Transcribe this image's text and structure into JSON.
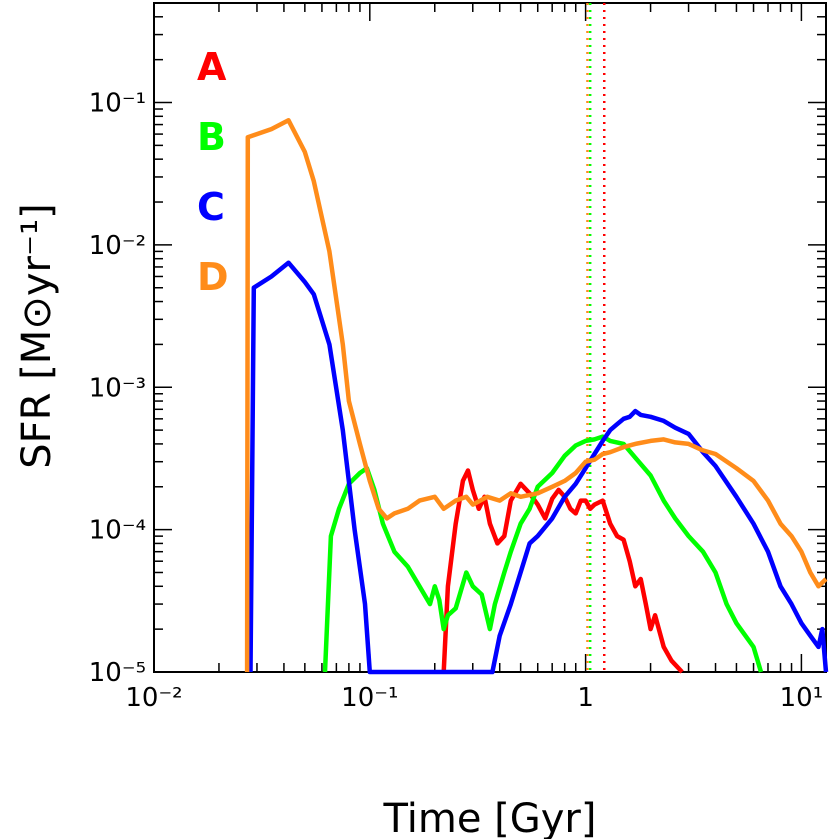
{
  "chart_data": {
    "type": "line",
    "xlabel": "Time [Gyr]",
    "ylabel": "SFR [M⊙yr⁻¹]",
    "xscale": "log",
    "yscale": "log",
    "xlim": [
      0.01,
      13
    ],
    "ylim": [
      1e-05,
      0.5
    ],
    "grid": false,
    "legend_placement": "top-left",
    "x_ticks": [
      {
        "value": 0.01,
        "label": "10⁻²"
      },
      {
        "value": 0.1,
        "label": "10⁻¹"
      },
      {
        "value": 1,
        "label": "1"
      },
      {
        "value": 10,
        "label": "10¹"
      }
    ],
    "y_ticks": [
      {
        "value": 0.1,
        "label": "10⁻¹"
      },
      {
        "value": 0.01,
        "label": "10⁻²"
      },
      {
        "value": 0.001,
        "label": "10⁻³"
      },
      {
        "value": 0.0001,
        "label": "10⁻⁴"
      },
      {
        "value": 1e-05,
        "label": "10⁻⁵"
      }
    ],
    "series": [
      {
        "name": "A",
        "color": "#ff0000",
        "points": [
          [
            0.22,
            1e-05
          ],
          [
            0.23,
            4e-05
          ],
          [
            0.25,
            0.00011
          ],
          [
            0.27,
            0.00022
          ],
          [
            0.285,
            0.00026
          ],
          [
            0.3,
            0.00019
          ],
          [
            0.32,
            0.00014
          ],
          [
            0.34,
            0.00017
          ],
          [
            0.36,
            0.00011
          ],
          [
            0.39,
            8e-05
          ],
          [
            0.42,
            9e-05
          ],
          [
            0.45,
            0.00016
          ],
          [
            0.5,
            0.00021
          ],
          [
            0.55,
            0.00018
          ],
          [
            0.6,
            0.00015
          ],
          [
            0.65,
            0.00012
          ],
          [
            0.7,
            0.000165
          ],
          [
            0.75,
            0.00019
          ],
          [
            0.8,
            0.00017
          ],
          [
            0.85,
            0.00014
          ],
          [
            0.9,
            0.00013
          ],
          [
            0.95,
            0.00016
          ],
          [
            1.0,
            0.00016
          ],
          [
            1.05,
            0.00014
          ],
          [
            1.1,
            0.00015
          ],
          [
            1.2,
            0.00016
          ],
          [
            1.3,
            0.00011
          ],
          [
            1.4,
            9e-05
          ],
          [
            1.5,
            8.5e-05
          ],
          [
            1.6,
            6e-05
          ],
          [
            1.7,
            4e-05
          ],
          [
            1.8,
            4.5e-05
          ],
          [
            1.9,
            3e-05
          ],
          [
            2.0,
            2e-05
          ],
          [
            2.1,
            2.5e-05
          ],
          [
            2.3,
            1.5e-05
          ],
          [
            2.5,
            1.2e-05
          ],
          [
            2.8,
            1e-05
          ]
        ]
      },
      {
        "name": "B",
        "color": "#00ff00",
        "points": [
          [
            0.062,
            1e-05
          ],
          [
            0.066,
            9e-05
          ],
          [
            0.072,
            0.00014
          ],
          [
            0.08,
            0.00021
          ],
          [
            0.09,
            0.00025
          ],
          [
            0.097,
            0.00027
          ],
          [
            0.105,
            0.00019
          ],
          [
            0.115,
            0.00011
          ],
          [
            0.13,
            7e-05
          ],
          [
            0.15,
            5.5e-05
          ],
          [
            0.17,
            4e-05
          ],
          [
            0.19,
            3e-05
          ],
          [
            0.2,
            4e-05
          ],
          [
            0.21,
            3.2e-05
          ],
          [
            0.22,
            2e-05
          ],
          [
            0.23,
            2.5e-05
          ],
          [
            0.25,
            2.8e-05
          ],
          [
            0.28,
            5e-05
          ],
          [
            0.3,
            4e-05
          ],
          [
            0.33,
            3.5e-05
          ],
          [
            0.36,
            2e-05
          ],
          [
            0.38,
            3e-05
          ],
          [
            0.42,
            5e-05
          ],
          [
            0.45,
            7e-05
          ],
          [
            0.5,
            0.00011
          ],
          [
            0.55,
            0.00014
          ],
          [
            0.6,
            0.0002
          ],
          [
            0.7,
            0.00025
          ],
          [
            0.8,
            0.00033
          ],
          [
            0.9,
            0.00039
          ],
          [
            1.0,
            0.00042
          ],
          [
            1.1,
            0.00043
          ],
          [
            1.2,
            0.00045
          ],
          [
            1.3,
            0.00042
          ],
          [
            1.5,
            0.0004
          ],
          [
            1.7,
            0.00032
          ],
          [
            2.0,
            0.00024
          ],
          [
            2.3,
            0.00016
          ],
          [
            2.6,
            0.00012
          ],
          [
            3.0,
            9e-05
          ],
          [
            3.5,
            7e-05
          ],
          [
            4.0,
            5e-05
          ],
          [
            4.5,
            3e-05
          ],
          [
            5.0,
            2.2e-05
          ],
          [
            5.5,
            1.8e-05
          ],
          [
            6.0,
            1.5e-05
          ],
          [
            6.5,
            1e-05
          ]
        ]
      },
      {
        "name": "C",
        "color": "#0000ff",
        "points": [
          [
            0.028,
            1e-05
          ],
          [
            0.029,
            0.005
          ],
          [
            0.035,
            0.006
          ],
          [
            0.042,
            0.0075
          ],
          [
            0.05,
            0.0055
          ],
          [
            0.055,
            0.0045
          ],
          [
            0.065,
            0.002
          ],
          [
            0.075,
            0.0005
          ],
          [
            0.085,
            0.0001
          ],
          [
            0.095,
            3e-05
          ],
          [
            0.1,
            1e-05
          ],
          [
            0.37,
            1e-05
          ],
          [
            0.4,
            1.8e-05
          ],
          [
            0.45,
            3e-05
          ],
          [
            0.5,
            5e-05
          ],
          [
            0.55,
            8e-05
          ],
          [
            0.6,
            9e-05
          ],
          [
            0.7,
            0.00012
          ],
          [
            0.8,
            0.00017
          ],
          [
            0.9,
            0.00021
          ],
          [
            1.0,
            0.00027
          ],
          [
            1.1,
            0.00034
          ],
          [
            1.2,
            0.00042
          ],
          [
            1.3,
            0.0005
          ],
          [
            1.4,
            0.00055
          ],
          [
            1.5,
            0.0006
          ],
          [
            1.6,
            0.00062
          ],
          [
            1.7,
            0.00068
          ],
          [
            1.8,
            0.00064
          ],
          [
            2.0,
            0.00062
          ],
          [
            2.3,
            0.00058
          ],
          [
            2.6,
            0.00052
          ],
          [
            3.0,
            0.00047
          ],
          [
            3.5,
            0.00035
          ],
          [
            4.0,
            0.00028
          ],
          [
            5.0,
            0.00017
          ],
          [
            6.0,
            0.00011
          ],
          [
            7.0,
            7e-05
          ],
          [
            8.0,
            4e-05
          ],
          [
            9.0,
            3e-05
          ],
          [
            10.0,
            2.2e-05
          ],
          [
            11.0,
            1.8e-05
          ],
          [
            12.0,
            1.5e-05
          ],
          [
            12.5,
            2e-05
          ],
          [
            13.0,
            1e-05
          ]
        ]
      },
      {
        "name": "D",
        "color": "#ff8c1a",
        "points": [
          [
            0.027,
            1e-05
          ],
          [
            0.0272,
            0.057
          ],
          [
            0.035,
            0.065
          ],
          [
            0.042,
            0.075
          ],
          [
            0.05,
            0.045
          ],
          [
            0.055,
            0.028
          ],
          [
            0.065,
            0.009
          ],
          [
            0.075,
            0.002
          ],
          [
            0.08,
            0.0008
          ],
          [
            0.09,
            0.0004
          ],
          [
            0.1,
            0.00022
          ],
          [
            0.11,
            0.00014
          ],
          [
            0.12,
            0.00012
          ],
          [
            0.13,
            0.00013
          ],
          [
            0.15,
            0.00014
          ],
          [
            0.17,
            0.00016
          ],
          [
            0.2,
            0.00017
          ],
          [
            0.22,
            0.00014
          ],
          [
            0.25,
            0.00016
          ],
          [
            0.28,
            0.00017
          ],
          [
            0.3,
            0.00015
          ],
          [
            0.35,
            0.00017
          ],
          [
            0.4,
            0.00016
          ],
          [
            0.45,
            0.00018
          ],
          [
            0.5,
            0.00017
          ],
          [
            0.6,
            0.00018
          ],
          [
            0.7,
            0.0002
          ],
          [
            0.8,
            0.00022
          ],
          [
            0.9,
            0.00025
          ],
          [
            1.0,
            0.0003
          ],
          [
            1.1,
            0.00031
          ],
          [
            1.2,
            0.00034
          ],
          [
            1.3,
            0.00035
          ],
          [
            1.5,
            0.00038
          ],
          [
            1.7,
            0.0004
          ],
          [
            2.0,
            0.00042
          ],
          [
            2.3,
            0.00043
          ],
          [
            2.6,
            0.00041
          ],
          [
            3.0,
            0.0004
          ],
          [
            3.5,
            0.00036
          ],
          [
            4.0,
            0.00034
          ],
          [
            5.0,
            0.00027
          ],
          [
            6.0,
            0.00022
          ],
          [
            7.0,
            0.00016
          ],
          [
            8.0,
            0.00011
          ],
          [
            9.0,
            9e-05
          ],
          [
            10.0,
            7e-05
          ],
          [
            11.0,
            5e-05
          ],
          [
            12.0,
            4e-05
          ],
          [
            13.0,
            4.5e-05
          ]
        ]
      }
    ],
    "vlines": [
      {
        "x": 1.02,
        "color": "#ff8c1a"
      },
      {
        "x": 1.05,
        "color": "#00ff00"
      },
      {
        "x": 1.22,
        "color": "#ff0000"
      }
    ]
  }
}
